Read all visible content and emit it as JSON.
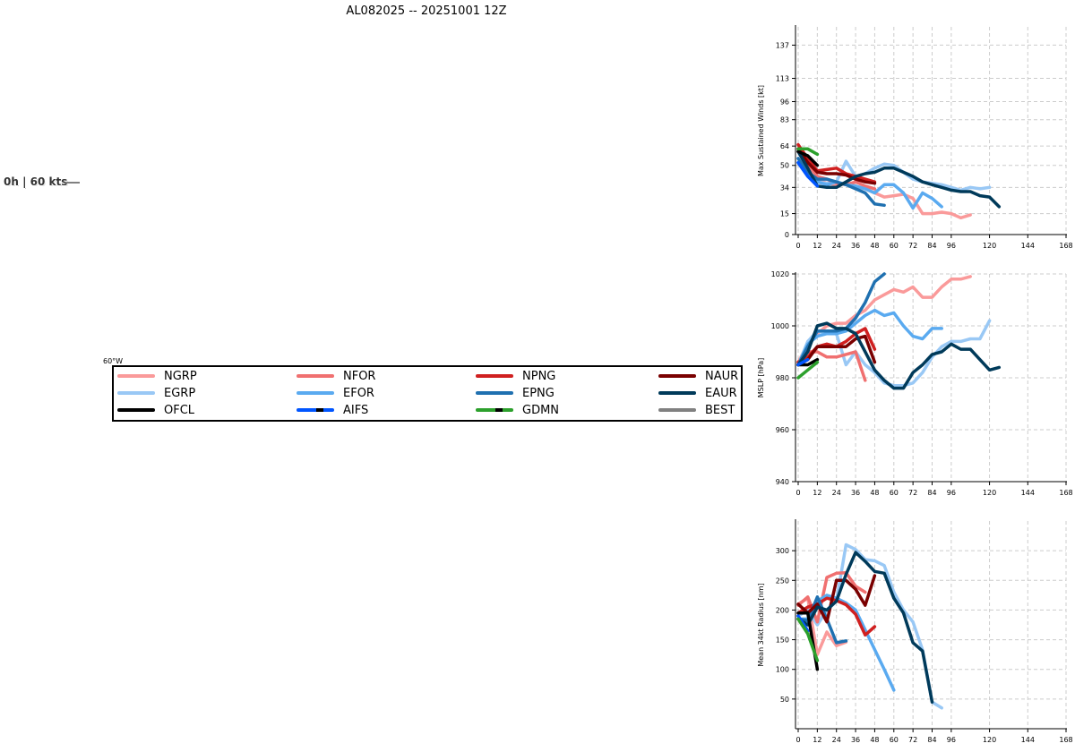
{
  "title": "AL082025 -- 20251001 12Z",
  "map": {
    "storm_label": "0h | 60 kts",
    "lon_label": "60°W"
  },
  "legend": [
    {
      "name": "NGRP",
      "color": "#fa9a9a"
    },
    {
      "name": "NFOR",
      "color": "#f07070"
    },
    {
      "name": "NPNG",
      "color": "#d02020"
    },
    {
      "name": "NAUR",
      "color": "#7a0000"
    },
    {
      "name": "EGRP",
      "color": "#99c8f5"
    },
    {
      "name": "EFOR",
      "color": "#5aaaf0"
    },
    {
      "name": "EPNG",
      "color": "#1f70b0"
    },
    {
      "name": "EAUR",
      "color": "#003a5a"
    },
    {
      "name": "OFCL",
      "color": "#000000"
    },
    {
      "name": "AIFS",
      "color": "#0055ff",
      "accent": "#000000"
    },
    {
      "name": "GDMN",
      "color": "#2ca02c",
      "accent": "#000000"
    },
    {
      "name": "BEST",
      "color": "#808080"
    }
  ],
  "chart_data": [
    {
      "type": "line",
      "ylabel": "Max Sustained Winds [kt]",
      "xticks": [
        0,
        12,
        24,
        36,
        48,
        60,
        72,
        84,
        96,
        120,
        144,
        168
      ],
      "yticks": [
        0,
        15,
        34,
        50,
        64,
        83,
        96,
        113,
        137
      ],
      "xlim": [
        0,
        168
      ],
      "ylim": [
        0,
        150
      ],
      "grid": true,
      "series": [
        {
          "name": "NGRP",
          "color": "#fa9a9a",
          "x": [
            0,
            6,
            12,
            18,
            24,
            30,
            36,
            42,
            48,
            54,
            60,
            66,
            72,
            78,
            84,
            90,
            96,
            102,
            108
          ],
          "y": [
            60,
            48,
            40,
            37,
            36,
            37,
            35,
            33,
            30,
            27,
            28,
            29,
            26,
            15,
            15,
            16,
            15,
            12,
            14
          ]
        },
        {
          "name": "EGRP",
          "color": "#99c8f5",
          "x": [
            0,
            6,
            12,
            18,
            24,
            30,
            36,
            42,
            48,
            54,
            60,
            66,
            72,
            78,
            84,
            90,
            96,
            102,
            108,
            114,
            120
          ],
          "y": [
            52,
            42,
            38,
            37,
            38,
            53,
            42,
            44,
            48,
            51,
            50,
            45,
            40,
            38,
            37,
            36,
            34,
            32,
            34,
            33,
            34
          ]
        },
        {
          "name": "NFOR",
          "color": "#f07070",
          "x": [
            0,
            6,
            12,
            18,
            24,
            30,
            36,
            42,
            48
          ],
          "y": [
            62,
            52,
            42,
            40,
            37,
            36,
            38,
            35,
            33
          ]
        },
        {
          "name": "EFOR",
          "color": "#5aaaf0",
          "x": [
            0,
            6,
            12,
            18,
            24,
            30,
            36,
            42,
            48,
            54,
            60,
            66,
            72,
            78,
            84,
            90
          ],
          "y": [
            55,
            44,
            38,
            36,
            38,
            36,
            35,
            33,
            30,
            36,
            36,
            30,
            19,
            30,
            26,
            20
          ]
        },
        {
          "name": "NPNG",
          "color": "#d02020",
          "x": [
            0,
            6,
            12,
            18,
            24,
            30,
            36,
            42,
            48
          ],
          "y": [
            65,
            55,
            46,
            47,
            48,
            44,
            42,
            40,
            38
          ]
        },
        {
          "name": "EPNG",
          "color": "#1f70b0",
          "x": [
            0,
            6,
            12,
            18,
            24,
            30,
            36,
            42,
            48,
            54
          ],
          "y": [
            55,
            45,
            40,
            40,
            38,
            36,
            33,
            30,
            22,
            21
          ]
        },
        {
          "name": "NAUR",
          "color": "#7a0000",
          "x": [
            0,
            6,
            12,
            18,
            24,
            30,
            36,
            42,
            48
          ],
          "y": [
            62,
            52,
            45,
            44,
            44,
            43,
            40,
            38,
            37
          ]
        },
        {
          "name": "EAUR",
          "color": "#003a5a",
          "x": [
            0,
            6,
            12,
            18,
            24,
            30,
            36,
            42,
            48,
            54,
            60,
            66,
            72,
            78,
            84,
            90,
            96,
            102,
            108,
            114,
            120,
            126
          ],
          "y": [
            60,
            48,
            35,
            34,
            34,
            38,
            42,
            44,
            45,
            48,
            48,
            45,
            42,
            38,
            36,
            34,
            32,
            31,
            31,
            28,
            27,
            20
          ]
        },
        {
          "name": "OFCL",
          "color": "#000000",
          "x": [
            0,
            6,
            12
          ],
          "y": [
            60,
            57,
            50
          ]
        },
        {
          "name": "AIFS",
          "color": "#0055ff",
          "x": [
            0,
            6,
            12
          ],
          "y": [
            52,
            42,
            35
          ]
        },
        {
          "name": "GDMN",
          "color": "#2ca02c",
          "x": [
            0,
            6,
            12
          ],
          "y": [
            62,
            62,
            58
          ]
        }
      ]
    },
    {
      "type": "line",
      "ylabel": "MSLP [hPa]",
      "xticks": [
        0,
        12,
        24,
        36,
        48,
        60,
        72,
        84,
        96,
        120,
        144,
        168
      ],
      "yticks": [
        940,
        960,
        980,
        1000,
        1020
      ],
      "xlim": [
        0,
        168
      ],
      "ylim": [
        940,
        1020
      ],
      "grid": true,
      "series": [
        {
          "name": "NGRP",
          "color": "#fa9a9a",
          "x": [
            0,
            6,
            12,
            18,
            24,
            30,
            36,
            42,
            48,
            54,
            60,
            66,
            72,
            78,
            84,
            90,
            96,
            102,
            108
          ],
          "y": [
            986,
            993,
            997,
            1000,
            1001,
            1001,
            1004,
            1006,
            1010,
            1012,
            1014,
            1013,
            1015,
            1011,
            1011,
            1015,
            1018,
            1018,
            1019
          ]
        },
        {
          "name": "EGRP",
          "color": "#99c8f5",
          "x": [
            0,
            6,
            12,
            18,
            24,
            30,
            36,
            42,
            48,
            54,
            60,
            66,
            72,
            78,
            84,
            90,
            96,
            102,
            108,
            114,
            120
          ],
          "y": [
            985,
            994,
            998,
            997,
            997,
            985,
            990,
            985,
            982,
            978,
            977,
            977,
            978,
            982,
            988,
            992,
            994,
            994,
            995,
            995,
            1002
          ]
        },
        {
          "name": "NFOR",
          "color": "#f07070",
          "x": [
            0,
            6,
            12,
            18,
            24,
            30,
            36,
            42
          ],
          "y": [
            986,
            990,
            990,
            988,
            988,
            989,
            990,
            979
          ]
        },
        {
          "name": "EFOR",
          "color": "#5aaaf0",
          "x": [
            0,
            6,
            12,
            18,
            24,
            30,
            36,
            42,
            48,
            54,
            60,
            66,
            72,
            78,
            84,
            90
          ],
          "y": [
            985,
            993,
            996,
            997,
            997,
            998,
            1001,
            1004,
            1006,
            1004,
            1005,
            1000,
            996,
            995,
            999,
            999
          ]
        },
        {
          "name": "NPNG",
          "color": "#d02020",
          "x": [
            0,
            6,
            12,
            18,
            24,
            30,
            36,
            42,
            48
          ],
          "y": [
            986,
            988,
            992,
            993,
            992,
            994,
            997,
            999,
            991
          ]
        },
        {
          "name": "EPNG",
          "color": "#1f70b0",
          "x": [
            0,
            6,
            12,
            18,
            24,
            30,
            36,
            42,
            48,
            54
          ],
          "y": [
            985,
            992,
            998,
            998,
            998,
            999,
            1003,
            1009,
            1017,
            1020
          ]
        },
        {
          "name": "NAUR",
          "color": "#7a0000",
          "x": [
            0,
            6,
            12,
            18,
            24,
            30,
            36,
            42,
            48
          ],
          "y": [
            985,
            987,
            992,
            992,
            992,
            992,
            995,
            996,
            986
          ]
        },
        {
          "name": "EAUR",
          "color": "#003a5a",
          "x": [
            0,
            6,
            12,
            18,
            24,
            30,
            36,
            42,
            48,
            54,
            60,
            66,
            72,
            78,
            84,
            90,
            96,
            102,
            108,
            114,
            120,
            126
          ],
          "y": [
            985,
            990,
            1000,
            1001,
            999,
            999,
            997,
            990,
            983,
            979,
            976,
            976,
            982,
            985,
            989,
            990,
            993,
            991,
            991,
            987,
            983,
            984
          ]
        },
        {
          "name": "OFCL",
          "color": "#000000",
          "x": [
            0,
            6,
            12
          ],
          "y": [
            985,
            985,
            987
          ]
        },
        {
          "name": "AIFS",
          "color": "#0055ff",
          "x": [
            0,
            6
          ],
          "y": [
            985,
            987
          ]
        },
        {
          "name": "GDMN",
          "color": "#2ca02c",
          "x": [
            0,
            6,
            12
          ],
          "y": [
            980,
            983,
            986
          ]
        }
      ]
    },
    {
      "type": "line",
      "ylabel": "Mean 34kt Radius [nm]",
      "xticks": [
        0,
        12,
        24,
        36,
        48,
        60,
        72,
        84,
        96,
        120,
        144,
        168
      ],
      "yticks": [
        50,
        100,
        150,
        200,
        250,
        300
      ],
      "xlim": [
        0,
        168
      ],
      "ylim": [
        0,
        350
      ],
      "grid": true,
      "series": [
        {
          "name": "NGRP",
          "color": "#fa9a9a",
          "x": [
            0,
            6,
            12,
            18,
            24,
            30
          ],
          "y": [
            210,
            220,
            125,
            163,
            140,
            146
          ]
        },
        {
          "name": "EGRP",
          "color": "#99c8f5",
          "x": [
            0,
            6,
            12,
            18,
            24,
            30,
            36,
            42,
            48,
            54,
            60,
            66,
            72,
            78,
            84,
            90
          ],
          "y": [
            190,
            200,
            175,
            200,
            215,
            310,
            302,
            285,
            283,
            275,
            230,
            200,
            180,
            133,
            45,
            35
          ]
        },
        {
          "name": "NFOR",
          "color": "#f07070",
          "x": [
            0,
            6,
            12,
            18,
            24,
            30,
            36,
            42
          ],
          "y": [
            208,
            222,
            180,
            255,
            262,
            263,
            240,
            230
          ]
        },
        {
          "name": "EFOR",
          "color": "#5aaaf0",
          "x": [
            0,
            6,
            12,
            18,
            24,
            30,
            36,
            54,
            60
          ],
          "y": [
            185,
            185,
            215,
            225,
            220,
            212,
            200,
            100,
            65
          ]
        },
        {
          "name": "NPNG",
          "color": "#d02020",
          "x": [
            0,
            6,
            12,
            18,
            24,
            30,
            36,
            42,
            48
          ],
          "y": [
            195,
            205,
            210,
            220,
            216,
            209,
            193,
            158,
            172
          ]
        },
        {
          "name": "EPNG",
          "color": "#1f70b0",
          "x": [
            0,
            6,
            12,
            18,
            24,
            30
          ],
          "y": [
            185,
            182,
            222,
            185,
            145,
            148
          ]
        },
        {
          "name": "NAUR",
          "color": "#7a0000",
          "x": [
            0,
            6,
            12,
            18,
            24,
            30,
            36,
            42,
            48
          ],
          "y": [
            210,
            195,
            210,
            180,
            250,
            250,
            235,
            208,
            258
          ]
        },
        {
          "name": "EAUR",
          "color": "#003a5a",
          "x": [
            0,
            6,
            12,
            18,
            24,
            30,
            36,
            42,
            48,
            54,
            60,
            66,
            72,
            78,
            84
          ],
          "y": [
            185,
            175,
            205,
            200,
            215,
            260,
            297,
            282,
            265,
            262,
            220,
            195,
            145,
            131,
            45
          ]
        },
        {
          "name": "OFCL",
          "color": "#000000",
          "x": [
            0,
            6,
            12
          ],
          "y": [
            195,
            195,
            100
          ]
        },
        {
          "name": "AIFS",
          "color": "#0055ff",
          "x": [
            0,
            6
          ],
          "y": [
            190,
            165
          ]
        },
        {
          "name": "GDMN",
          "color": "#2ca02c",
          "x": [
            0,
            6,
            12
          ],
          "y": [
            185,
            160,
            115
          ]
        }
      ]
    }
  ]
}
